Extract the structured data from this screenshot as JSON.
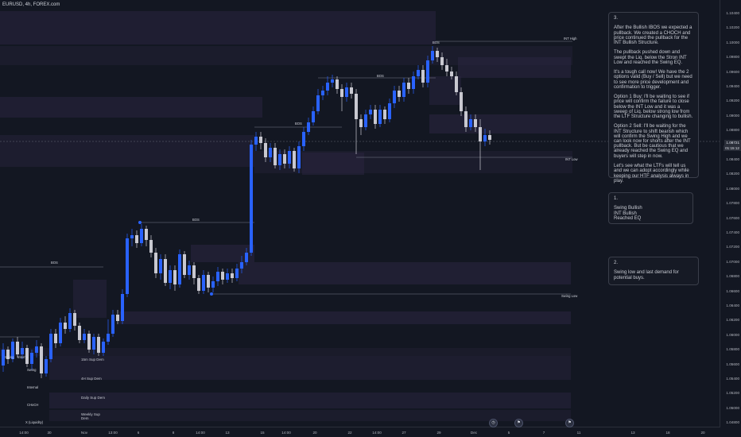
{
  "symbol": "EURUSD, 4h, FOREX.com",
  "colors": {
    "bg": "#131722",
    "bull": "#2962ff",
    "bear": "#c8c8d0",
    "zone": "#2a2540",
    "line": "#7a7f8c"
  },
  "price_axis": {
    "ticks": [
      "1.10400",
      "1.10200",
      "1.10000",
      "1.09800",
      "1.09600",
      "1.09400",
      "1.09200",
      "1.09000",
      "1.08800",
      "1.08600",
      "1.08400",
      "1.08200",
      "1.08000",
      "1.07800",
      "1.07600",
      "1.07400",
      "1.07200",
      "1.07000",
      "1.06800",
      "1.06600",
      "1.06400",
      "1.06200",
      "1.06000",
      "1.05800",
      "1.05600",
      "1.05400",
      "1.05200",
      "1.05000",
      "1.04800"
    ],
    "current_price": "1.08721",
    "countdown": "01:15:12"
  },
  "time_axis": {
    "ticks": [
      "14:00",
      "30",
      "Nov",
      "13:00",
      "6",
      "8",
      "14:00",
      "13",
      "15",
      "14:00",
      "20",
      "22",
      "14:00",
      "27",
      "29",
      "Dec",
      "5",
      "7",
      "11",
      "13",
      "18",
      "20"
    ]
  },
  "structure_labels": {
    "int_high": "INT High",
    "int_low": "INT Low",
    "swing_low": "Swing Low",
    "bos1": "BOS",
    "bos2": "BOS",
    "bos3": "BOS",
    "bos4": "BOS",
    "bos5": "BOS"
  },
  "notes": [
    {
      "text": "3.\n\nAfter the Bullish IBOS we expected a pullback. We created a CHOCH and price continued the pullback for the INT Bullish Structure.\n\nThe pullback pushed down and swept the Liq. below the Stron INT Low and reached the Swing EQ.\n\nIt's a tough call now! We have the 2 options valid (Buy / Sell) but we need to see more price development and confirmation to trigger.\n\nOption 1 Buy: I'll be waiting to see if price will confirm the failure to close below the INT Low and it was a sweep of Liq. below strong low from the LTF Structure changing to bullish.\n\nOption 2 Sell: I'll be waiting for the INT Structure to shift bearish which will confirm the Swing High and we can look now for shorts after the INT pullback. But be cautious that we already reached the Swing EQ and buyers will step in now.\n\nLet's see what the LTFs will tell us and we can adopt accordingly while keeping our HTF analysis always in play."
    },
    {
      "text": "1.\n\nSwing Bullish\nINT Bullish\nReached EQ"
    },
    {
      "text": "2.\n\nSwing low and last demand for potential buys."
    }
  ],
  "legend": {
    "rows": [
      {
        "left": "Swing",
        "right": "15m Sup Dem"
      },
      {
        "left": "Internal",
        "right": "4H Sup Dem"
      },
      {
        "left": "CHoCH",
        "right": "Daily Sup Dem"
      },
      {
        "left": "X (Liquidity)",
        "right": "Weekly Sup Dem"
      }
    ],
    "left_top": "Swing",
    "left_internal": "Internal"
  },
  "bottom_icons": [
    "clock-icon",
    "flag-icon",
    "flag-icon"
  ]
}
